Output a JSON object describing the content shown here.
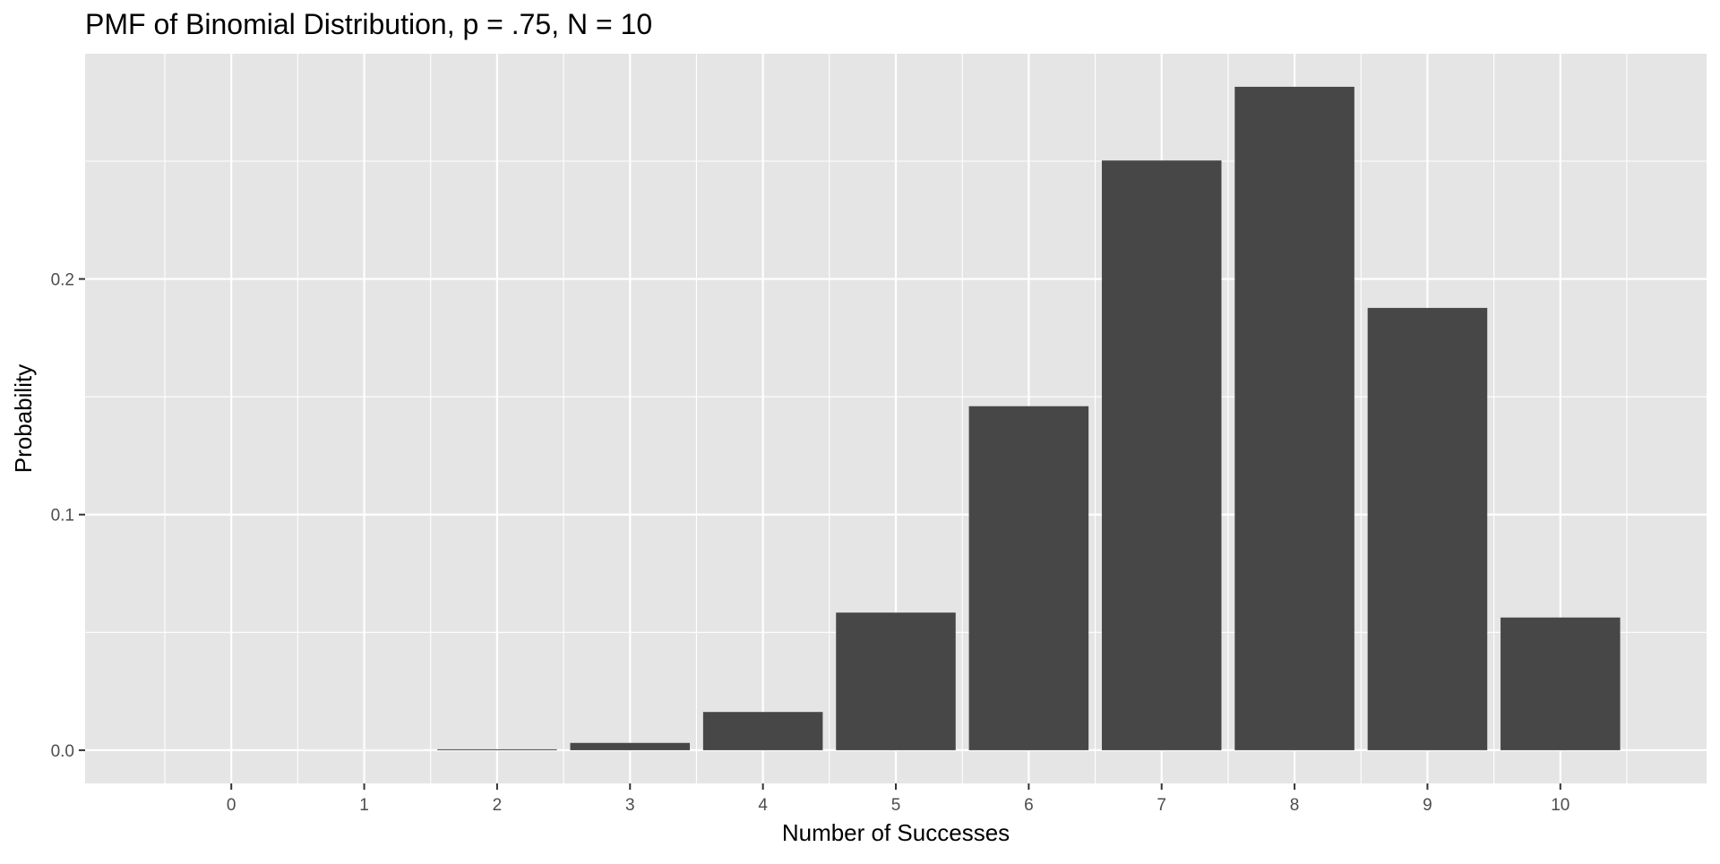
{
  "chart_data": {
    "type": "bar",
    "title": "PMF of Binomial Distribution, p = .75, N = 10",
    "xlabel": "Number of Successes",
    "ylabel": "Probability",
    "categories": [
      "0",
      "1",
      "2",
      "3",
      "4",
      "5",
      "6",
      "7",
      "8",
      "9",
      "10"
    ],
    "values": [
      9.537e-07,
      2.86102e-05,
      0.0003862381,
      0.0030899048,
      0.0162220001,
      0.0583992004,
      0.1459980011,
      0.2502822876,
      0.2815675735,
      0.1877117157,
      0.0563135147
    ],
    "y_ticks": [
      "0.0",
      "0.1",
      "0.2"
    ],
    "y_tick_values": [
      0.0,
      0.1,
      0.2
    ],
    "ylim": [
      -0.0141,
      0.2956
    ],
    "grid": true,
    "colors": {
      "panel_background": "#e5e5e5",
      "grid": "#ffffff",
      "bar_fill": "#474747",
      "tick_label": "#4d4d4d",
      "text": "#000000"
    }
  }
}
